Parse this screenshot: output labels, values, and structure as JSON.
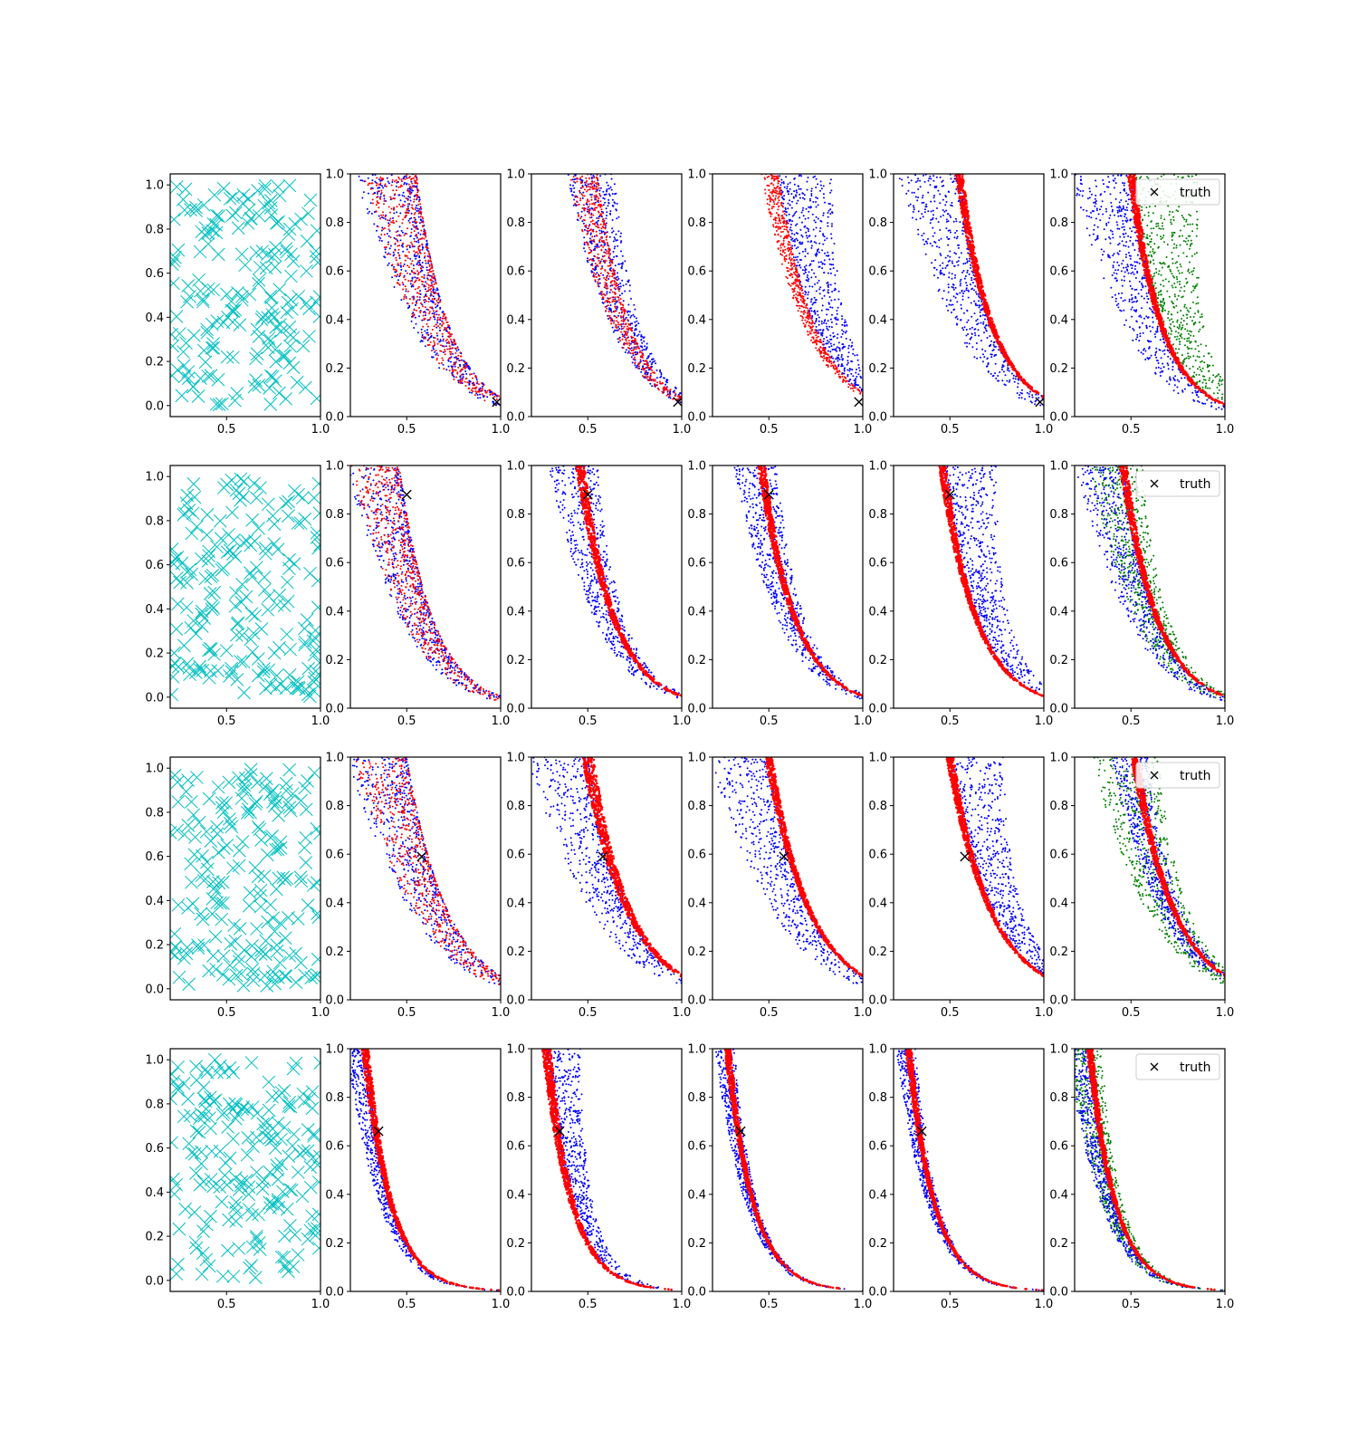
{
  "figure": {
    "legend_label": "truth",
    "colors": {
      "samples": "#00bfbf",
      "blue": "#0000ff",
      "red": "#ff0000",
      "green": "#008000",
      "truth": "#000000",
      "axes": "#000000"
    }
  },
  "chart_data": [
    {
      "type": "scatter",
      "row": 0,
      "col": 0,
      "panel": "samples",
      "xlim": [
        0.2,
        1.0
      ],
      "ylim": [
        -0.05,
        1.05
      ],
      "xticks": [
        "0.5",
        "1.0"
      ],
      "yticks": [
        "0.0",
        "0.2",
        "0.4",
        "0.6",
        "0.8",
        "1.0"
      ],
      "series": [
        {
          "marker": "x",
          "color": "#00bfbf",
          "x_range": [
            0.2,
            1.0
          ],
          "y_range": [
            0.0,
            1.0
          ],
          "approx_count": 200
        }
      ]
    },
    {
      "type": "scatter",
      "row": 0,
      "col": 1,
      "xlim": [
        0.2,
        1.0
      ],
      "ylim": [
        0,
        1
      ],
      "xticks": [
        "0.5",
        "1.0"
      ],
      "yticks": [
        "0.0",
        "0.2",
        "0.4",
        "0.6",
        "0.8",
        "1.0"
      ],
      "front": {
        "x_at_y1": 0.55,
        "y_at_x1": 0.08
      },
      "series": [
        {
          "color": "#0000ff",
          "spread": "inside",
          "width": 0.25
        },
        {
          "color": "#ff0000",
          "spread": "inside",
          "width": 0.22
        }
      ],
      "truth": {
        "x": 0.98,
        "y": 0.06
      }
    },
    {
      "type": "scatter",
      "row": 0,
      "col": 2,
      "xlim": [
        0.2,
        1.0
      ],
      "ylim": [
        0,
        1
      ],
      "xticks": [
        "0.5",
        "1.0"
      ],
      "yticks": [
        "0.0",
        "0.2",
        "0.4",
        "0.6",
        "0.8",
        "1.0"
      ],
      "front": {
        "x_at_y1": 0.55,
        "y_at_x1": 0.08
      },
      "series": [
        {
          "color": "#0000ff",
          "spread": "both",
          "width": 0.2
        },
        {
          "color": "#ff0000",
          "spread": "inside",
          "width": 0.12
        }
      ],
      "truth": {
        "x": 0.98,
        "y": 0.06
      }
    },
    {
      "type": "scatter",
      "row": 0,
      "col": 3,
      "xlim": [
        0.2,
        1.0
      ],
      "ylim": [
        0,
        1
      ],
      "xticks": [
        "0.5",
        "1.0"
      ],
      "yticks": [
        "0.0",
        "0.2",
        "0.4",
        "0.6",
        "0.8",
        "1.0"
      ],
      "front": {
        "x_at_y1": 0.55,
        "y_at_x1": 0.1
      },
      "series": [
        {
          "color": "#0000ff",
          "spread": "outside",
          "width": 0.22
        },
        {
          "color": "#ff0000",
          "spread": "inside",
          "width": 0.07
        }
      ],
      "truth": {
        "x": 0.98,
        "y": 0.06
      }
    },
    {
      "type": "scatter",
      "row": 0,
      "col": 4,
      "xlim": [
        0.2,
        1.0
      ],
      "ylim": [
        0,
        1
      ],
      "xticks": [
        "0.5",
        "1.0"
      ],
      "yticks": [
        "0.0",
        "0.2",
        "0.4",
        "0.6",
        "0.8",
        "1.0"
      ],
      "front": {
        "x_at_y1": 0.55,
        "y_at_x1": 0.08
      },
      "series": [
        {
          "color": "#0000ff",
          "spread": "inside",
          "width": 0.25
        },
        {
          "color": "#ff0000",
          "spread": "band",
          "width": 0.05
        }
      ],
      "truth": {
        "x": 0.98,
        "y": 0.06
      }
    },
    {
      "type": "scatter",
      "row": 0,
      "col": 5,
      "xlim": [
        0.2,
        1.0
      ],
      "ylim": [
        0,
        1
      ],
      "xticks": [
        "0.5",
        "1.0"
      ],
      "yticks": [
        "0.0",
        "0.2",
        "0.4",
        "0.6",
        "0.8",
        "1.0"
      ],
      "legend": "top-right",
      "front": {
        "x_at_y1": 0.5,
        "y_at_x1": 0.05
      },
      "series": [
        {
          "color": "#008000",
          "spread": "outside",
          "width": 0.28
        },
        {
          "color": "#0000ff",
          "spread": "inside",
          "width": 0.25
        },
        {
          "color": "#ff0000",
          "spread": "band",
          "width": 0.05
        }
      ]
    },
    {
      "type": "scatter",
      "row": 1,
      "col": 0,
      "panel": "samples",
      "xlim": [
        0.2,
        1.0
      ],
      "ylim": [
        -0.05,
        1.05
      ],
      "xticks": [
        "0.5",
        "1.0"
      ],
      "yticks": [
        "0.0",
        "0.2",
        "0.4",
        "0.6",
        "0.8",
        "1.0"
      ],
      "series": [
        {
          "marker": "x",
          "color": "#00bfbf",
          "x_range": [
            0.2,
            1.0
          ],
          "y_range": [
            0.0,
            1.0
          ],
          "approx_count": 200
        }
      ]
    },
    {
      "type": "scatter",
      "row": 1,
      "col": 1,
      "xlim": [
        0.2,
        1.0
      ],
      "ylim": [
        0,
        1
      ],
      "xticks": [
        "0.5",
        "1.0"
      ],
      "yticks": [
        "0.0",
        "0.2",
        "0.4",
        "0.6",
        "0.8",
        "1.0"
      ],
      "front": {
        "x_at_y1": 0.46,
        "y_at_x1": 0.05
      },
      "series": [
        {
          "color": "#0000ff",
          "spread": "inside",
          "width": 0.22
        },
        {
          "color": "#ff0000",
          "spread": "inside",
          "width": 0.2
        }
      ],
      "truth": {
        "x": 0.5,
        "y": 0.88
      }
    },
    {
      "type": "scatter",
      "row": 1,
      "col": 2,
      "xlim": [
        0.2,
        1.0
      ],
      "ylim": [
        0,
        1
      ],
      "xticks": [
        "0.5",
        "1.0"
      ],
      "yticks": [
        "0.0",
        "0.2",
        "0.4",
        "0.6",
        "0.8",
        "1.0"
      ],
      "front": {
        "x_at_y1": 0.46,
        "y_at_x1": 0.05
      },
      "series": [
        {
          "color": "#0000ff",
          "spread": "both",
          "width": 0.2
        },
        {
          "color": "#ff0000",
          "spread": "band",
          "width": 0.06
        }
      ],
      "truth": {
        "x": 0.5,
        "y": 0.88
      }
    },
    {
      "type": "scatter",
      "row": 1,
      "col": 3,
      "xlim": [
        0.2,
        1.0
      ],
      "ylim": [
        0,
        1
      ],
      "xticks": [
        "0.5",
        "1.0"
      ],
      "yticks": [
        "0.0",
        "0.2",
        "0.4",
        "0.6",
        "0.8",
        "1.0"
      ],
      "front": {
        "x_at_y1": 0.46,
        "y_at_x1": 0.05
      },
      "series": [
        {
          "color": "#0000ff",
          "spread": "both",
          "width": 0.18
        },
        {
          "color": "#ff0000",
          "spread": "band",
          "width": 0.05
        }
      ],
      "truth": {
        "x": 0.5,
        "y": 0.88
      }
    },
    {
      "type": "scatter",
      "row": 1,
      "col": 4,
      "xlim": [
        0.2,
        1.0
      ],
      "ylim": [
        0,
        1
      ],
      "xticks": [
        "0.5",
        "1.0"
      ],
      "yticks": [
        "0.0",
        "0.2",
        "0.4",
        "0.6",
        "0.8",
        "1.0"
      ],
      "front": {
        "x_at_y1": 0.46,
        "y_at_x1": 0.05
      },
      "series": [
        {
          "color": "#0000ff",
          "spread": "outside",
          "width": 0.22
        },
        {
          "color": "#ff0000",
          "spread": "band",
          "width": 0.05
        }
      ],
      "truth": {
        "x": 0.5,
        "y": 0.88
      }
    },
    {
      "type": "scatter",
      "row": 1,
      "col": 5,
      "xlim": [
        0.2,
        1.0
      ],
      "ylim": [
        0,
        1
      ],
      "xticks": [
        "0.5",
        "1.0"
      ],
      "yticks": [
        "0.0",
        "0.2",
        "0.4",
        "0.6",
        "0.8",
        "1.0"
      ],
      "legend": "top-right",
      "front": {
        "x_at_y1": 0.46,
        "y_at_x1": 0.05
      },
      "series": [
        {
          "color": "#008000",
          "spread": "both",
          "width": 0.22
        },
        {
          "color": "#0000ff",
          "spread": "inside",
          "width": 0.2
        },
        {
          "color": "#ff0000",
          "spread": "band",
          "width": 0.05
        }
      ]
    },
    {
      "type": "scatter",
      "row": 2,
      "col": 0,
      "panel": "samples",
      "xlim": [
        0.2,
        1.0
      ],
      "ylim": [
        -0.05,
        1.05
      ],
      "xticks": [
        "0.5",
        "1.0"
      ],
      "yticks": [
        "0.0",
        "0.2",
        "0.4",
        "0.6",
        "0.8",
        "1.0"
      ],
      "series": [
        {
          "marker": "x",
          "color": "#00bfbf",
          "x_range": [
            0.2,
            1.0
          ],
          "y_range": [
            0.0,
            1.0
          ],
          "approx_count": 200
        }
      ]
    },
    {
      "type": "scatter",
      "row": 2,
      "col": 1,
      "xlim": [
        0.2,
        1.0
      ],
      "ylim": [
        0,
        1
      ],
      "xticks": [
        "0.5",
        "1.0"
      ],
      "yticks": [
        "0.0",
        "0.2",
        "0.4",
        "0.6",
        "0.8",
        "1.0"
      ],
      "front": {
        "x_at_y1": 0.5,
        "y_at_x1": 0.1
      },
      "series": [
        {
          "color": "#0000ff",
          "spread": "inside",
          "width": 0.25
        },
        {
          "color": "#ff0000",
          "spread": "inside",
          "width": 0.22
        }
      ],
      "truth": {
        "x": 0.58,
        "y": 0.59
      }
    },
    {
      "type": "scatter",
      "row": 2,
      "col": 2,
      "xlim": [
        0.2,
        1.0
      ],
      "ylim": [
        0,
        1
      ],
      "xticks": [
        "0.5",
        "1.0"
      ],
      "yticks": [
        "0.0",
        "0.2",
        "0.4",
        "0.6",
        "0.8",
        "1.0"
      ],
      "front": {
        "x_at_y1": 0.5,
        "y_at_x1": 0.1
      },
      "series": [
        {
          "color": "#0000ff",
          "spread": "inside",
          "width": 0.25
        },
        {
          "color": "#ff0000",
          "spread": "band",
          "width": 0.08
        }
      ],
      "truth": {
        "x": 0.58,
        "y": 0.59
      }
    },
    {
      "type": "scatter",
      "row": 2,
      "col": 3,
      "xlim": [
        0.2,
        1.0
      ],
      "ylim": [
        0,
        1
      ],
      "xticks": [
        "0.5",
        "1.0"
      ],
      "yticks": [
        "0.0",
        "0.2",
        "0.4",
        "0.6",
        "0.8",
        "1.0"
      ],
      "front": {
        "x_at_y1": 0.5,
        "y_at_x1": 0.1
      },
      "series": [
        {
          "color": "#0000ff",
          "spread": "inside",
          "width": 0.25
        },
        {
          "color": "#ff0000",
          "spread": "band",
          "width": 0.05
        }
      ],
      "truth": {
        "x": 0.58,
        "y": 0.59
      }
    },
    {
      "type": "scatter",
      "row": 2,
      "col": 4,
      "xlim": [
        0.2,
        1.0
      ],
      "ylim": [
        0,
        1
      ],
      "xticks": [
        "0.5",
        "1.0"
      ],
      "yticks": [
        "0.0",
        "0.2",
        "0.4",
        "0.6",
        "0.8",
        "1.0"
      ],
      "front": {
        "x_at_y1": 0.5,
        "y_at_x1": 0.1
      },
      "series": [
        {
          "color": "#0000ff",
          "spread": "outside",
          "width": 0.22
        },
        {
          "color": "#ff0000",
          "spread": "band",
          "width": 0.05
        }
      ],
      "truth": {
        "x": 0.58,
        "y": 0.59
      }
    },
    {
      "type": "scatter",
      "row": 2,
      "col": 5,
      "xlim": [
        0.2,
        1.0
      ],
      "ylim": [
        0,
        1
      ],
      "xticks": [
        "0.5",
        "1.0"
      ],
      "yticks": [
        "0.0",
        "0.2",
        "0.4",
        "0.6",
        "0.8",
        "1.0"
      ],
      "legend": "top-right",
      "front": {
        "x_at_y1": 0.52,
        "y_at_x1": 0.1
      },
      "series": [
        {
          "color": "#008000",
          "spread": "both",
          "width": 0.28
        },
        {
          "color": "#0000ff",
          "spread": "both",
          "width": 0.15
        },
        {
          "color": "#ff0000",
          "spread": "band",
          "width": 0.05
        }
      ]
    },
    {
      "type": "scatter",
      "row": 3,
      "col": 0,
      "panel": "samples",
      "xlim": [
        0.2,
        1.0
      ],
      "ylim": [
        -0.05,
        1.05
      ],
      "xticks": [
        "0.5",
        "1.0"
      ],
      "yticks": [
        "0.0",
        "0.2",
        "0.4",
        "0.6",
        "0.8",
        "1.0"
      ],
      "series": [
        {
          "marker": "x",
          "color": "#00bfbf",
          "x_range": [
            0.2,
            1.0
          ],
          "y_range": [
            0.0,
            1.0
          ],
          "approx_count": 200
        }
      ]
    },
    {
      "type": "scatter",
      "row": 3,
      "col": 1,
      "xlim": [
        0.2,
        1.0
      ],
      "ylim": [
        0,
        1
      ],
      "xticks": [
        "0.5",
        "1.0"
      ],
      "yticks": [
        "0.0",
        "0.2",
        "0.4",
        "0.6",
        "0.8",
        "1.0"
      ],
      "front": {
        "x_at_y1": 0.28,
        "y_at_x1": 0.0
      },
      "decay": 4.2,
      "series": [
        {
          "color": "#0000ff",
          "spread": "inside",
          "width": 0.08
        },
        {
          "color": "#ff0000",
          "spread": "band",
          "width": 0.05
        }
      ],
      "truth": {
        "x": 0.35,
        "y": 0.66
      }
    },
    {
      "type": "scatter",
      "row": 3,
      "col": 2,
      "xlim": [
        0.2,
        1.0
      ],
      "ylim": [
        0,
        1
      ],
      "xticks": [
        "0.5",
        "1.0"
      ],
      "yticks": [
        "0.0",
        "0.2",
        "0.4",
        "0.6",
        "0.8",
        "1.0"
      ],
      "front": {
        "x_at_y1": 0.28,
        "y_at_x1": 0.0
      },
      "decay": 4.2,
      "series": [
        {
          "color": "#0000ff",
          "spread": "outside",
          "width": 0.14
        },
        {
          "color": "#ff0000",
          "spread": "band",
          "width": 0.06
        }
      ],
      "truth": {
        "x": 0.35,
        "y": 0.66
      }
    },
    {
      "type": "scatter",
      "row": 3,
      "col": 3,
      "xlim": [
        0.2,
        1.0
      ],
      "ylim": [
        0,
        1
      ],
      "xticks": [
        "0.5",
        "1.0"
      ],
      "yticks": [
        "0.0",
        "0.2",
        "0.4",
        "0.6",
        "0.8",
        "1.0"
      ],
      "front": {
        "x_at_y1": 0.28,
        "y_at_x1": 0.0
      },
      "decay": 4.2,
      "series": [
        {
          "color": "#0000ff",
          "spread": "both",
          "width": 0.08
        },
        {
          "color": "#ff0000",
          "spread": "band",
          "width": 0.04
        }
      ],
      "truth": {
        "x": 0.35,
        "y": 0.66
      }
    },
    {
      "type": "scatter",
      "row": 3,
      "col": 4,
      "xlim": [
        0.2,
        1.0
      ],
      "ylim": [
        0,
        1
      ],
      "xticks": [
        "0.5",
        "1.0"
      ],
      "yticks": [
        "0.0",
        "0.2",
        "0.4",
        "0.6",
        "0.8",
        "1.0"
      ],
      "front": {
        "x_at_y1": 0.28,
        "y_at_x1": 0.0
      },
      "decay": 4.2,
      "series": [
        {
          "color": "#0000ff",
          "spread": "both",
          "width": 0.08
        },
        {
          "color": "#ff0000",
          "spread": "band",
          "width": 0.04
        }
      ],
      "truth": {
        "x": 0.35,
        "y": 0.66
      }
    },
    {
      "type": "scatter",
      "row": 3,
      "col": 5,
      "xlim": [
        0.2,
        1.0
      ],
      "ylim": [
        0,
        1
      ],
      "xticks": [
        "0.5",
        "1.0"
      ],
      "yticks": [
        "0.0",
        "0.2",
        "0.4",
        "0.6",
        "0.8",
        "1.0"
      ],
      "legend": "top-right",
      "front": {
        "x_at_y1": 0.28,
        "y_at_x1": 0.0
      },
      "decay": 4.2,
      "series": [
        {
          "color": "#008000",
          "spread": "both",
          "width": 0.14
        },
        {
          "color": "#0000ff",
          "spread": "inside",
          "width": 0.1
        },
        {
          "color": "#ff0000",
          "spread": "band",
          "width": 0.04
        }
      ]
    }
  ]
}
